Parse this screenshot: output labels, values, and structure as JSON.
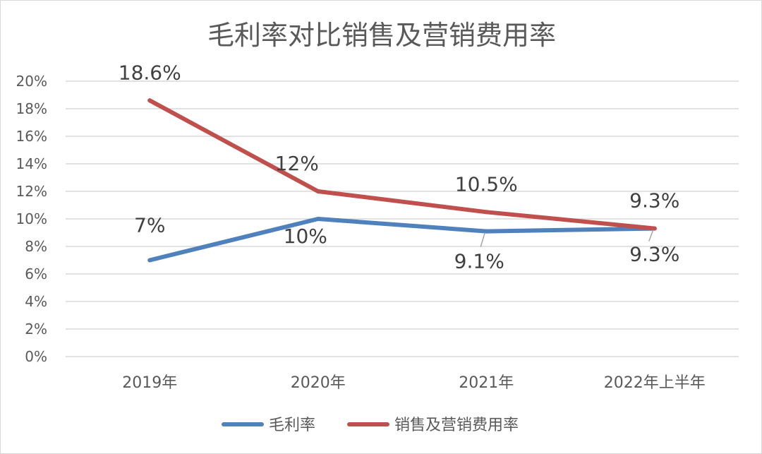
{
  "chart_data": {
    "type": "line",
    "title": "毛利率对比销售及营销费用率",
    "categories": [
      "2019年",
      "2020年",
      "2021年",
      "2022年上半年"
    ],
    "ylim": [
      0,
      20
    ],
    "y_ticks": [
      "0%",
      "2%",
      "4%",
      "6%",
      "8%",
      "10%",
      "12%",
      "14%",
      "16%",
      "18%",
      "20%"
    ],
    "grid": true,
    "legend_position": "bottom",
    "series": [
      {
        "name": "毛利率",
        "color": "#4f81bd",
        "values": [
          7,
          10,
          9.1,
          9.3
        ],
        "labels": [
          "7%",
          "10%",
          "9.1%",
          "9.3%"
        ]
      },
      {
        "name": "销售及营销费用率",
        "color": "#c0504d",
        "values": [
          18.6,
          12,
          10.5,
          9.3
        ],
        "labels": [
          "18.6%",
          "12%",
          "10.5%",
          "9.3%"
        ]
      }
    ]
  }
}
